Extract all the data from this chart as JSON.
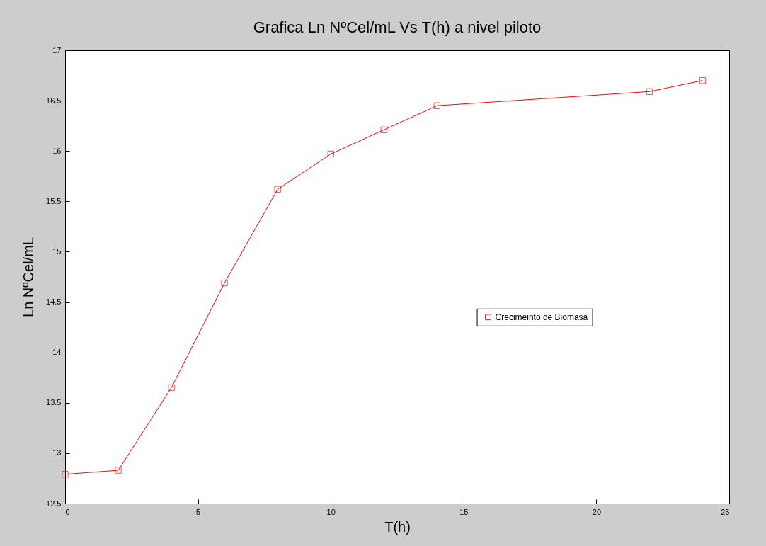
{
  "chart_data": {
    "type": "line",
    "title": "Grafica Ln NºCel/mL  Vs  T(h) a nivel piloto",
    "xlabel": "T(h)",
    "ylabel": "Ln NºCel/mL",
    "x": [
      0,
      2,
      4,
      6,
      8,
      10,
      12,
      14,
      22,
      24
    ],
    "series": [
      {
        "name": "Crecimeinto de Biomasa",
        "color": "#ff0000",
        "values": [
          12.79,
          12.83,
          13.65,
          14.69,
          15.62,
          15.97,
          16.21,
          16.45,
          16.59,
          16.7
        ]
      }
    ],
    "xlim": [
      0,
      25
    ],
    "xticks": [
      0,
      5,
      10,
      15,
      20,
      25
    ],
    "ylim": [
      12.5,
      17
    ],
    "yticks": [
      12.5,
      13,
      13.5,
      14,
      14.5,
      15,
      15.5,
      16,
      16.5,
      17
    ],
    "marker": "square",
    "line_style": "solid",
    "legend": "right",
    "grid": false
  }
}
